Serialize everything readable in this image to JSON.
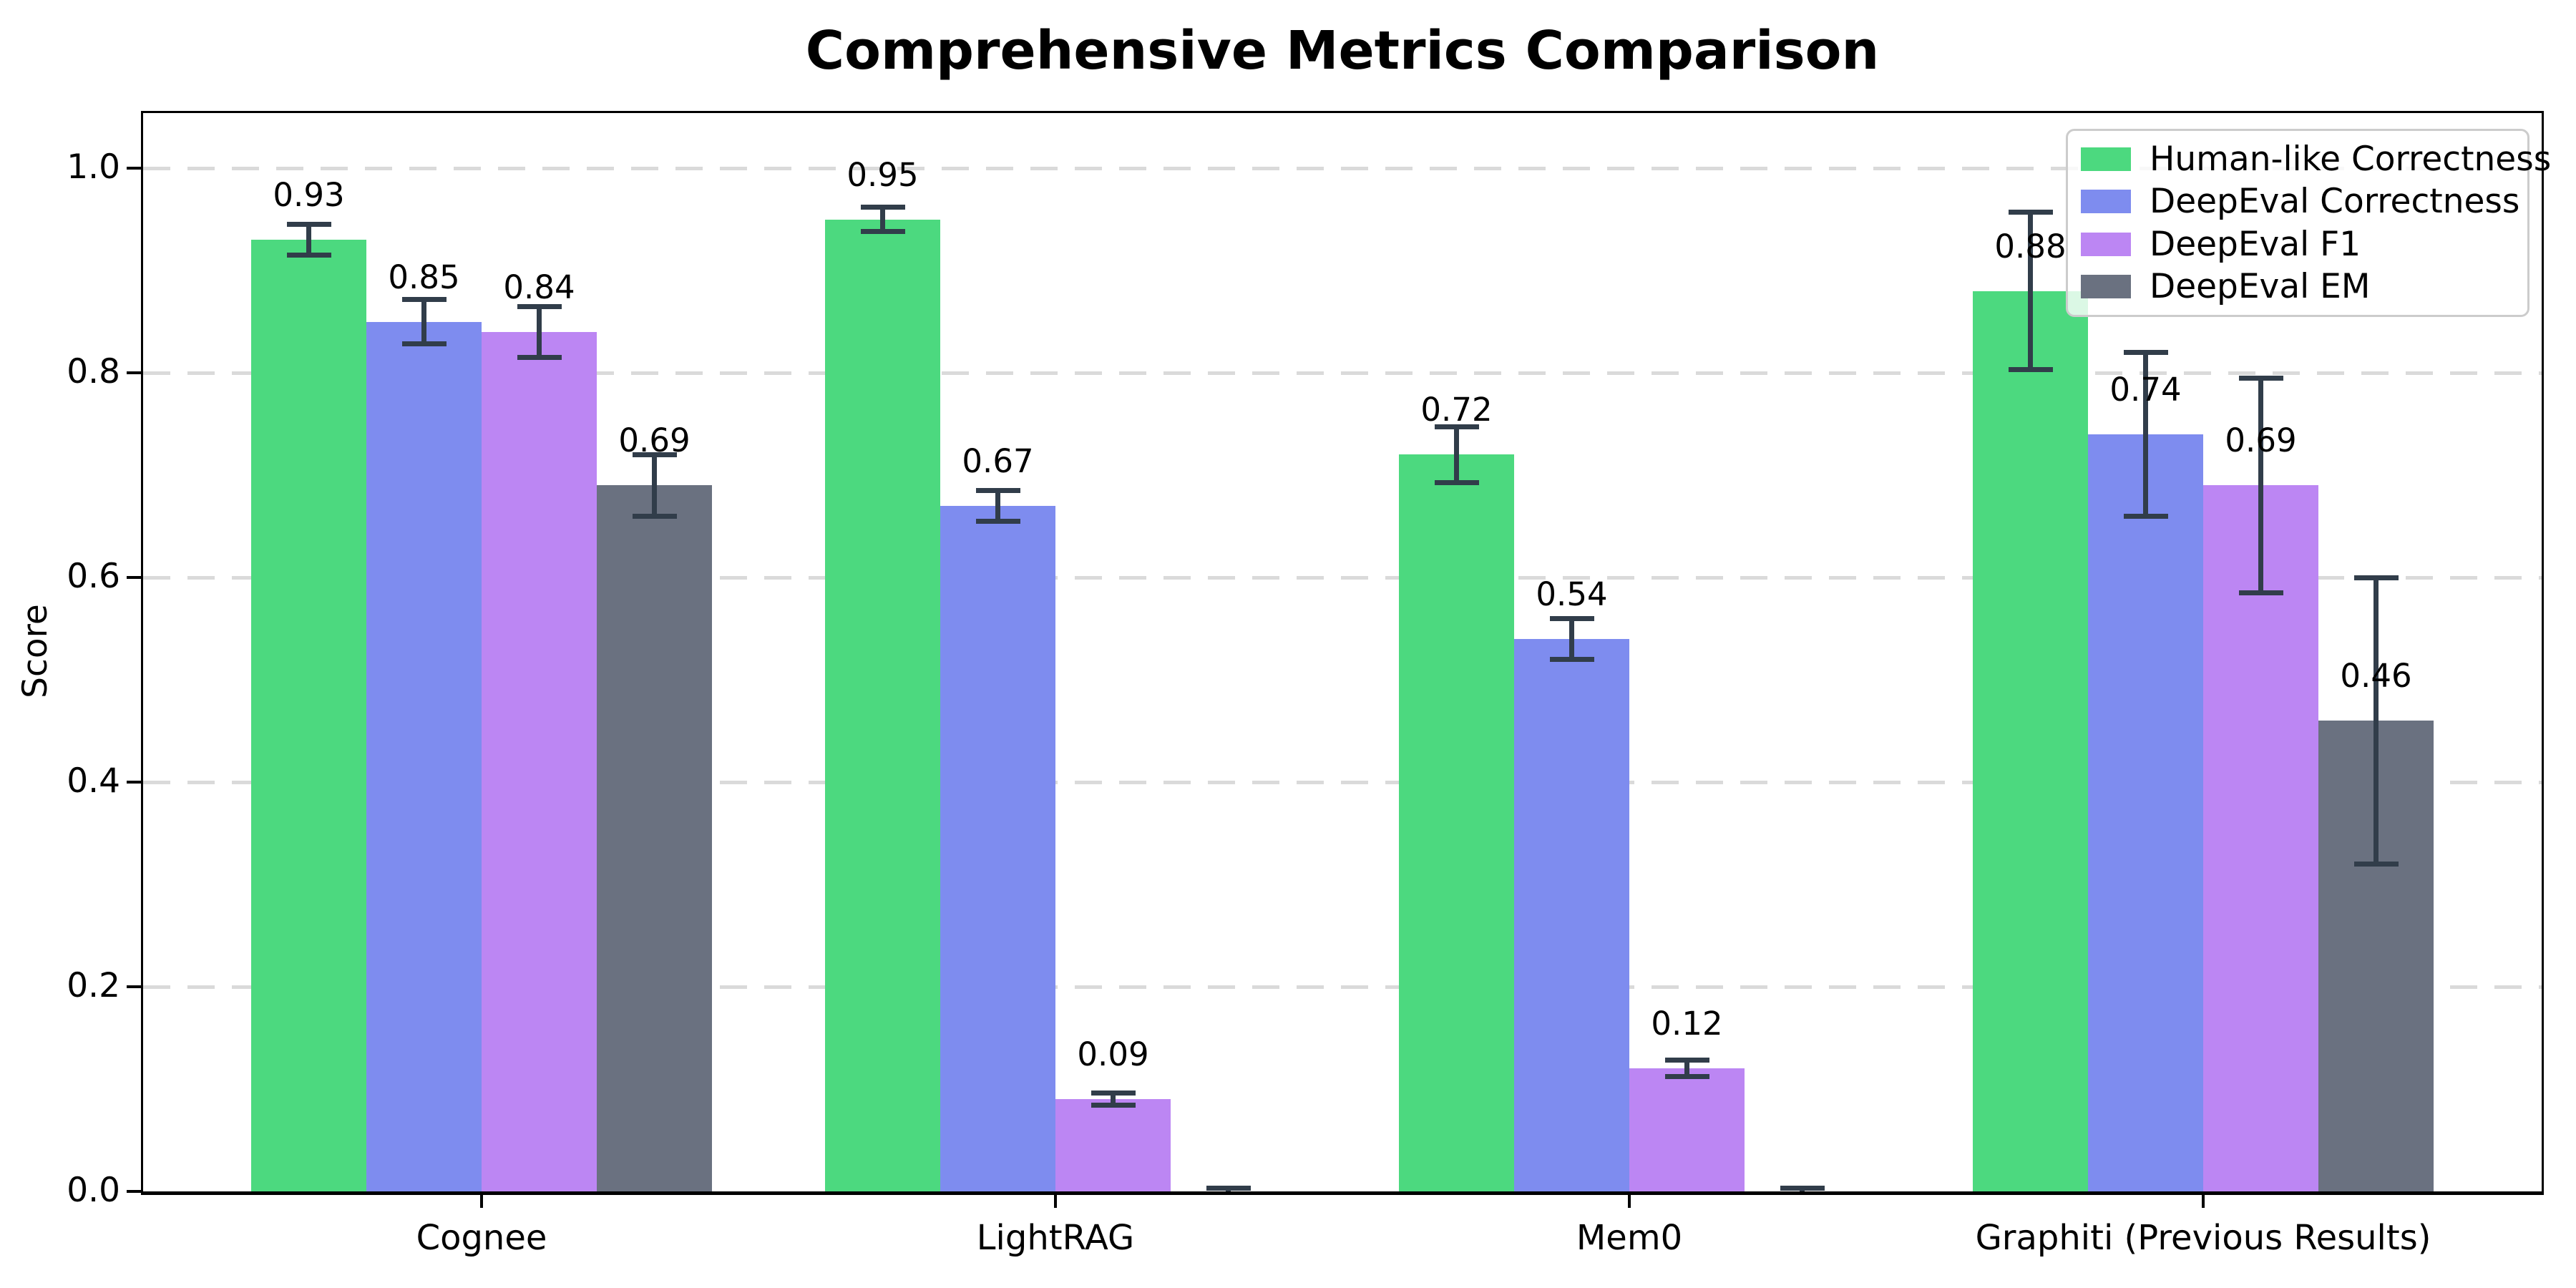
{
  "chart_data": {
    "type": "bar",
    "title": "Comprehensive Metrics Comparison",
    "xlabel": "",
    "ylabel": "Score",
    "categories": [
      "Cognee",
      "LightRAG",
      "Mem0",
      "Graphiti (Previous Results)"
    ],
    "series": [
      {
        "name": "Human-like Correctness",
        "color": "#4cd97f",
        "values": [
          0.93,
          0.95,
          0.72,
          0.88
        ],
        "errors": [
          0.015,
          0.012,
          0.027,
          0.077
        ],
        "labels": [
          "0.93",
          "0.95",
          "0.72",
          "0.88"
        ]
      },
      {
        "name": "DeepEval Correctness",
        "color": "#7e8cef",
        "values": [
          0.85,
          0.67,
          0.54,
          0.74
        ],
        "errors": [
          0.022,
          0.015,
          0.02,
          0.08
        ],
        "labels": [
          "0.85",
          "0.67",
          "0.54",
          "0.74"
        ]
      },
      {
        "name": "DeepEval F1",
        "color": "#bc86f3",
        "values": [
          0.84,
          0.09,
          0.12,
          0.69
        ],
        "errors": [
          0.025,
          0.006,
          0.008,
          0.105
        ],
        "labels": [
          "0.84",
          "0.09",
          "0.12",
          "0.69"
        ]
      },
      {
        "name": "DeepEval EM",
        "color": "#6a7180",
        "values": [
          0.69,
          0.0,
          0.0,
          0.46
        ],
        "errors": [
          0.03,
          0.003,
          0.003,
          0.14
        ],
        "labels": [
          "0.69",
          "",
          "",
          "0.46"
        ]
      }
    ],
    "yticks": [
      "0.0",
      "0.2",
      "0.4",
      "0.6",
      "0.8",
      "1.0"
    ],
    "ylim": [
      0,
      1.05
    ],
    "grid": "horizontal-dashed",
    "legend_position": "upper-right",
    "error_bar_color": "#313d4a"
  }
}
